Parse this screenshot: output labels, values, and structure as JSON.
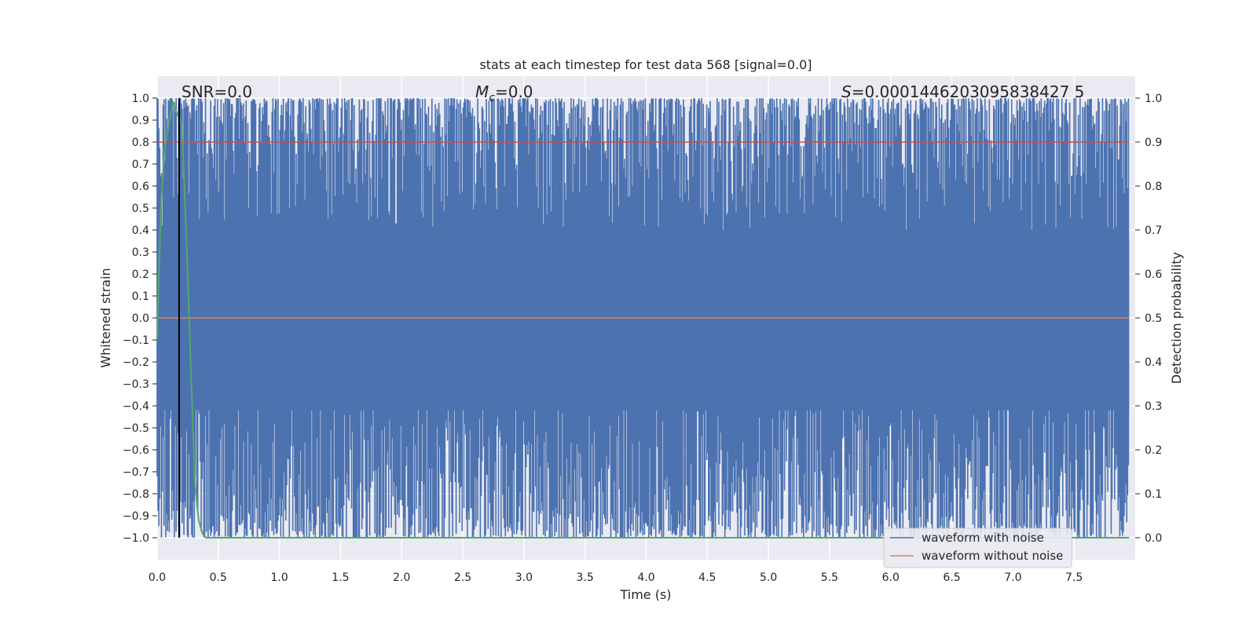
{
  "chart_data": {
    "type": "line",
    "title": "stats at each timestep for test data 568 [signal=0.0]",
    "xlabel": "Time (s)",
    "ylabel": "Whitened strain",
    "y2label": "Detection probability",
    "xlim": [
      0.0,
      8.0
    ],
    "ylim": [
      -1.1,
      1.1
    ],
    "y2lim": [
      -0.05,
      1.05
    ],
    "x_ticks": [
      "0.0",
      "0.5",
      "1.0",
      "1.5",
      "2.0",
      "2.5",
      "3.0",
      "3.5",
      "4.0",
      "4.5",
      "5.0",
      "5.5",
      "6.0",
      "6.5",
      "7.0",
      "7.5"
    ],
    "y_ticks": [
      "1.0",
      "0.9",
      "0.8",
      "0.7",
      "0.6",
      "0.5",
      "0.4",
      "0.3",
      "0.2",
      "0.1",
      "0.0",
      "−0.1",
      "−0.2",
      "−0.3",
      "−0.4",
      "−0.5",
      "−0.6",
      "−0.7",
      "−0.8",
      "−0.9",
      "−1.0"
    ],
    "y2_ticks": [
      "1.0",
      "0.9",
      "0.8",
      "0.7",
      "0.6",
      "0.5",
      "0.4",
      "0.3",
      "0.2",
      "0.1",
      "0.0"
    ],
    "grid": true,
    "legend_position": "lower-right",
    "annotations": {
      "snr": "SNR=0.0",
      "mc_symbol": "M",
      "mc_sub": "c",
      "mc_value": "=0.0",
      "s_symbol": "S",
      "s_value": "=0.0001446203095838427 5"
    },
    "series": [
      {
        "name": "waveform with noise",
        "color": "#4c72b0",
        "description": "dense noise oscillating between about -1.0 and 1.0 over the full 0-8 s range"
      },
      {
        "name": "waveform without noise",
        "color": "#dd8452",
        "y_constant": 0.0
      },
      {
        "color": "#55a868",
        "axis": "right",
        "x": [
          0.0,
          0.03,
          0.06,
          0.1,
          0.13,
          0.17,
          0.2,
          0.22,
          0.25,
          0.28,
          0.31,
          0.34,
          0.37,
          0.4,
          1.0,
          2.0,
          3.0,
          4.0,
          5.0,
          6.0,
          7.0,
          7.95
        ],
        "y": [
          0.45,
          0.75,
          0.88,
          0.95,
          0.99,
          0.96,
          0.94,
          0.82,
          0.6,
          0.35,
          0.12,
          0.04,
          0.01,
          0.0,
          0.0,
          0.0,
          0.0,
          0.0,
          0.0,
          0.0,
          0.0,
          0.0
        ]
      },
      {
        "color": "#c44e52",
        "axis": "right",
        "y_constant": 0.9
      }
    ],
    "vline": {
      "x": 0.18,
      "color": "#000000"
    }
  }
}
